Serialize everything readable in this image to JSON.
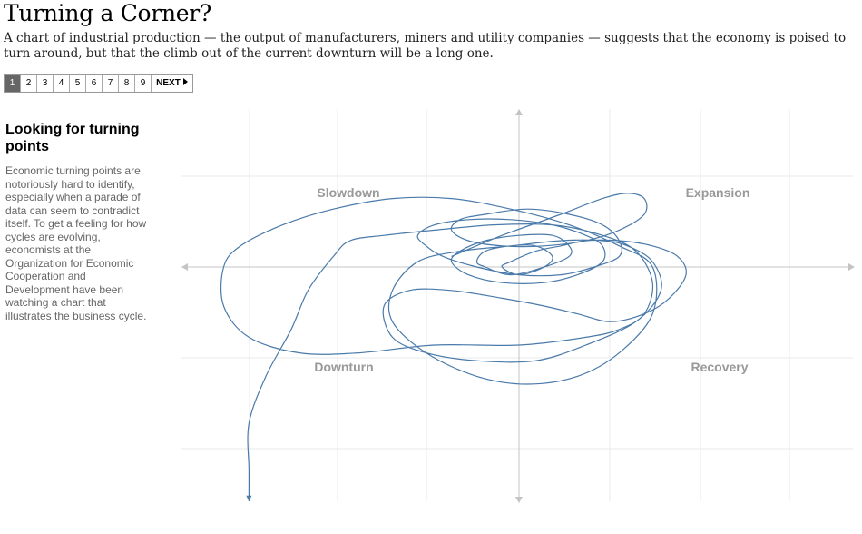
{
  "header": {
    "title": "Turning a Corner?",
    "subtitle": "A chart of industrial production — the output of manufacturers, miners and utility companies — suggests that the economy is poised to turn around, but that the climb out of the current downturn will be a long one."
  },
  "pager": {
    "pages": [
      "1",
      "2",
      "3",
      "4",
      "5",
      "6",
      "7",
      "8",
      "9"
    ],
    "active": "1",
    "next_label": "NEXT"
  },
  "sidebar": {
    "heading": "Looking for turning points",
    "body": "Economic turning points are notoriously hard to identify, especially when a parade of data can seem to contradict itself. To get a feeling for how cycles are evolving, economists at the Organization for Economic Cooperation and Development have been watching a chart that illustrates the business cycle."
  },
  "chart_data": {
    "type": "line",
    "quadrants": {
      "top_left": "Slowdown",
      "top_right": "Expansion",
      "bottom_left": "Downturn",
      "bottom_right": "Recovery"
    },
    "xlim": [
      -4,
      4
    ],
    "ylim": [
      -3,
      3
    ],
    "grid": true,
    "series": [
      {
        "color": "#4a7aaa",
        "x": [
          -0.8,
          -0.2,
          0.5,
          1.0,
          1.3,
          1.5,
          1.5,
          1.2,
          0.8,
          0.3,
          -0.2,
          -0.6,
          -0.8,
          -0.7,
          -0.4,
          0.1,
          0.6,
          1.0,
          1.2,
          1.2,
          0.9,
          0.5,
          0.0,
          -0.5,
          -0.9,
          -1.1,
          -1.2,
          -1.0,
          -0.6,
          -0.1,
          0.4,
          0.8,
          1.0,
          1.0,
          0.7,
          0.3,
          -0.2,
          -0.6,
          -0.8,
          -0.7,
          -0.4,
          0.0,
          0.4,
          0.6,
          0.6,
          0.3,
          -0.1,
          -0.4,
          -0.5,
          -0.4,
          -0.1,
          0.2,
          0.4,
          0.3,
          0.0,
          -0.2,
          -0.1,
          0.2,
          0.5,
          0.8,
          1.2,
          1.6,
          1.9,
          2.0,
          1.8,
          1.5,
          1.1,
          0.7,
          0.3,
          -0.2,
          -0.8,
          -1.3,
          -1.6,
          -1.5,
          -1.1,
          -0.5,
          0.2,
          0.8,
          1.4,
          1.7,
          1.6,
          1.3,
          1.0,
          0.5,
          -0.1,
          -0.7,
          -1.2,
          -1.5,
          -1.5,
          -1.1,
          -0.5,
          0.1,
          0.7,
          1.2,
          1.6,
          1.6,
          1.2,
          0.6,
          -0.1,
          -0.8,
          -1.5,
          -2.2,
          -2.8,
          -3.3,
          -3.5,
          -3.5,
          -3.2,
          -2.6,
          -1.9,
          -1.0,
          0.0,
          0.8,
          1.2,
          1.5,
          1.6,
          1.4,
          1.0,
          0.4,
          -0.3,
          -1.0,
          -1.6,
          -2.0,
          -2.2,
          -2.5,
          -2.7,
          -3.0,
          -3.2,
          -3.2,
          -3.2
        ],
        "y": [
          0.2,
          0.6,
          1.0,
          1.3,
          1.4,
          1.3,
          1.0,
          0.7,
          0.5,
          0.4,
          0.4,
          0.5,
          0.7,
          0.9,
          1.0,
          1.1,
          1.0,
          0.8,
          0.5,
          0.2,
          0.0,
          -0.1,
          -0.1,
          0.0,
          0.2,
          0.4,
          0.6,
          0.8,
          0.9,
          0.9,
          0.8,
          0.6,
          0.4,
          0.1,
          -0.1,
          -0.2,
          -0.2,
          -0.1,
          0.1,
          0.3,
          0.5,
          0.6,
          0.6,
          0.4,
          0.2,
          0.0,
          -0.1,
          0.0,
          0.1,
          0.3,
          0.4,
          0.4,
          0.2,
          0.0,
          -0.1,
          0.0,
          0.1,
          0.3,
          0.4,
          0.5,
          0.5,
          0.4,
          0.2,
          -0.1,
          -0.4,
          -0.6,
          -0.7,
          -0.6,
          -0.5,
          -0.4,
          -0.3,
          -0.3,
          -0.5,
          -0.9,
          -1.1,
          -1.2,
          -1.2,
          -1.0,
          -0.7,
          -0.3,
          0.1,
          0.4,
          0.5,
          0.5,
          0.4,
          0.3,
          0.1,
          -0.3,
          -0.7,
          -1.1,
          -1.4,
          -1.5,
          -1.4,
          -1.1,
          -0.6,
          0.0,
          0.4,
          0.8,
          1.1,
          1.3,
          1.3,
          1.1,
          0.8,
          0.4,
          0.0,
          -0.5,
          -0.9,
          -1.1,
          -1.1,
          -1.0,
          -1.0,
          -0.9,
          -0.8,
          -0.6,
          -0.2,
          0.3,
          0.6,
          0.8,
          0.8,
          0.7,
          0.6,
          0.5,
          0.2,
          -0.3,
          -0.8,
          -1.4,
          -2.0,
          -2.6,
          -3.0
        ]
      }
    ]
  }
}
